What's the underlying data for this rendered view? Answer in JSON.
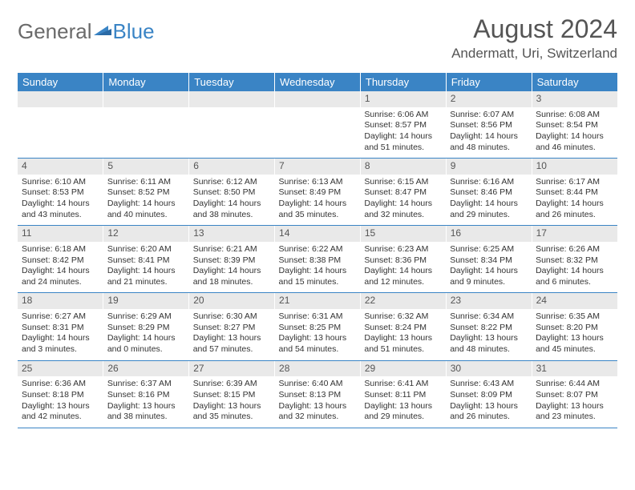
{
  "logo": {
    "text_general": "General",
    "text_blue": "Blue"
  },
  "title": {
    "month": "August 2024",
    "location": "Andermatt, Uri, Switzerland"
  },
  "days_of_week": [
    "Sunday",
    "Monday",
    "Tuesday",
    "Wednesday",
    "Thursday",
    "Friday",
    "Saturday"
  ],
  "colors": {
    "header_bg": "#3a84c5",
    "header_text": "#ffffff",
    "daynum_bg": "#e9e9e9",
    "border": "#3a84c5",
    "text": "#333333",
    "title_text": "#555555"
  },
  "weeks": [
    [
      null,
      null,
      null,
      null,
      {
        "num": "1",
        "sunrise": "Sunrise: 6:06 AM",
        "sunset": "Sunset: 8:57 PM",
        "daylight": "Daylight: 14 hours and 51 minutes."
      },
      {
        "num": "2",
        "sunrise": "Sunrise: 6:07 AM",
        "sunset": "Sunset: 8:56 PM",
        "daylight": "Daylight: 14 hours and 48 minutes."
      },
      {
        "num": "3",
        "sunrise": "Sunrise: 6:08 AM",
        "sunset": "Sunset: 8:54 PM",
        "daylight": "Daylight: 14 hours and 46 minutes."
      }
    ],
    [
      {
        "num": "4",
        "sunrise": "Sunrise: 6:10 AM",
        "sunset": "Sunset: 8:53 PM",
        "daylight": "Daylight: 14 hours and 43 minutes."
      },
      {
        "num": "5",
        "sunrise": "Sunrise: 6:11 AM",
        "sunset": "Sunset: 8:52 PM",
        "daylight": "Daylight: 14 hours and 40 minutes."
      },
      {
        "num": "6",
        "sunrise": "Sunrise: 6:12 AM",
        "sunset": "Sunset: 8:50 PM",
        "daylight": "Daylight: 14 hours and 38 minutes."
      },
      {
        "num": "7",
        "sunrise": "Sunrise: 6:13 AM",
        "sunset": "Sunset: 8:49 PM",
        "daylight": "Daylight: 14 hours and 35 minutes."
      },
      {
        "num": "8",
        "sunrise": "Sunrise: 6:15 AM",
        "sunset": "Sunset: 8:47 PM",
        "daylight": "Daylight: 14 hours and 32 minutes."
      },
      {
        "num": "9",
        "sunrise": "Sunrise: 6:16 AM",
        "sunset": "Sunset: 8:46 PM",
        "daylight": "Daylight: 14 hours and 29 minutes."
      },
      {
        "num": "10",
        "sunrise": "Sunrise: 6:17 AM",
        "sunset": "Sunset: 8:44 PM",
        "daylight": "Daylight: 14 hours and 26 minutes."
      }
    ],
    [
      {
        "num": "11",
        "sunrise": "Sunrise: 6:18 AM",
        "sunset": "Sunset: 8:42 PM",
        "daylight": "Daylight: 14 hours and 24 minutes."
      },
      {
        "num": "12",
        "sunrise": "Sunrise: 6:20 AM",
        "sunset": "Sunset: 8:41 PM",
        "daylight": "Daylight: 14 hours and 21 minutes."
      },
      {
        "num": "13",
        "sunrise": "Sunrise: 6:21 AM",
        "sunset": "Sunset: 8:39 PM",
        "daylight": "Daylight: 14 hours and 18 minutes."
      },
      {
        "num": "14",
        "sunrise": "Sunrise: 6:22 AM",
        "sunset": "Sunset: 8:38 PM",
        "daylight": "Daylight: 14 hours and 15 minutes."
      },
      {
        "num": "15",
        "sunrise": "Sunrise: 6:23 AM",
        "sunset": "Sunset: 8:36 PM",
        "daylight": "Daylight: 14 hours and 12 minutes."
      },
      {
        "num": "16",
        "sunrise": "Sunrise: 6:25 AM",
        "sunset": "Sunset: 8:34 PM",
        "daylight": "Daylight: 14 hours and 9 minutes."
      },
      {
        "num": "17",
        "sunrise": "Sunrise: 6:26 AM",
        "sunset": "Sunset: 8:32 PM",
        "daylight": "Daylight: 14 hours and 6 minutes."
      }
    ],
    [
      {
        "num": "18",
        "sunrise": "Sunrise: 6:27 AM",
        "sunset": "Sunset: 8:31 PM",
        "daylight": "Daylight: 14 hours and 3 minutes."
      },
      {
        "num": "19",
        "sunrise": "Sunrise: 6:29 AM",
        "sunset": "Sunset: 8:29 PM",
        "daylight": "Daylight: 14 hours and 0 minutes."
      },
      {
        "num": "20",
        "sunrise": "Sunrise: 6:30 AM",
        "sunset": "Sunset: 8:27 PM",
        "daylight": "Daylight: 13 hours and 57 minutes."
      },
      {
        "num": "21",
        "sunrise": "Sunrise: 6:31 AM",
        "sunset": "Sunset: 8:25 PM",
        "daylight": "Daylight: 13 hours and 54 minutes."
      },
      {
        "num": "22",
        "sunrise": "Sunrise: 6:32 AM",
        "sunset": "Sunset: 8:24 PM",
        "daylight": "Daylight: 13 hours and 51 minutes."
      },
      {
        "num": "23",
        "sunrise": "Sunrise: 6:34 AM",
        "sunset": "Sunset: 8:22 PM",
        "daylight": "Daylight: 13 hours and 48 minutes."
      },
      {
        "num": "24",
        "sunrise": "Sunrise: 6:35 AM",
        "sunset": "Sunset: 8:20 PM",
        "daylight": "Daylight: 13 hours and 45 minutes."
      }
    ],
    [
      {
        "num": "25",
        "sunrise": "Sunrise: 6:36 AM",
        "sunset": "Sunset: 8:18 PM",
        "daylight": "Daylight: 13 hours and 42 minutes."
      },
      {
        "num": "26",
        "sunrise": "Sunrise: 6:37 AM",
        "sunset": "Sunset: 8:16 PM",
        "daylight": "Daylight: 13 hours and 38 minutes."
      },
      {
        "num": "27",
        "sunrise": "Sunrise: 6:39 AM",
        "sunset": "Sunset: 8:15 PM",
        "daylight": "Daylight: 13 hours and 35 minutes."
      },
      {
        "num": "28",
        "sunrise": "Sunrise: 6:40 AM",
        "sunset": "Sunset: 8:13 PM",
        "daylight": "Daylight: 13 hours and 32 minutes."
      },
      {
        "num": "29",
        "sunrise": "Sunrise: 6:41 AM",
        "sunset": "Sunset: 8:11 PM",
        "daylight": "Daylight: 13 hours and 29 minutes."
      },
      {
        "num": "30",
        "sunrise": "Sunrise: 6:43 AM",
        "sunset": "Sunset: 8:09 PM",
        "daylight": "Daylight: 13 hours and 26 minutes."
      },
      {
        "num": "31",
        "sunrise": "Sunrise: 6:44 AM",
        "sunset": "Sunset: 8:07 PM",
        "daylight": "Daylight: 13 hours and 23 minutes."
      }
    ]
  ]
}
